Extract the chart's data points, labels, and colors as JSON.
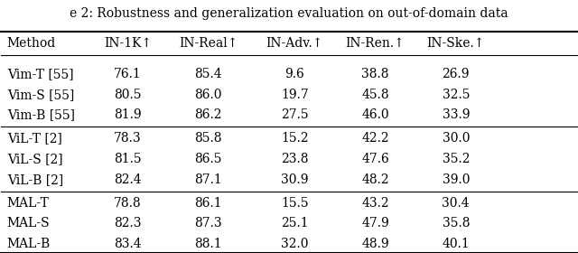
{
  "title": "e 2: Robustness and generalization evaluation on out-of-domain data",
  "columns": [
    "Method",
    "IN-1K↑",
    "IN-Real↑",
    "IN-Adv.↑",
    "IN-Ren.↑",
    "IN-Ske.↑"
  ],
  "rows": [
    [
      "Vim-T [55]",
      "76.1",
      "85.4",
      "9.6",
      "38.8",
      "26.9"
    ],
    [
      "Vim-S [55]",
      "80.5",
      "86.0",
      "19.7",
      "45.8",
      "32.5"
    ],
    [
      "Vim-B [55]",
      "81.9",
      "86.2",
      "27.5",
      "46.0",
      "33.9"
    ],
    [
      "ViL-T [2]",
      "78.3",
      "85.8",
      "15.2",
      "42.2",
      "30.0"
    ],
    [
      "ViL-S [2]",
      "81.5",
      "86.5",
      "23.8",
      "47.6",
      "35.2"
    ],
    [
      "ViL-B [2]",
      "82.4",
      "87.1",
      "30.9",
      "48.2",
      "39.0"
    ],
    [
      "MAL-T",
      "78.8",
      "86.1",
      "15.5",
      "43.2",
      "30.4"
    ],
    [
      "MAL-S",
      "82.3",
      "87.3",
      "25.1",
      "47.9",
      "35.8"
    ],
    [
      "MAL-B",
      "83.4",
      "88.1",
      "32.0",
      "48.9",
      "40.1"
    ]
  ],
  "group_separators": [
    3,
    6
  ],
  "col_aligns": [
    "left",
    "center",
    "center",
    "center",
    "center",
    "center"
  ],
  "background_color": "#ffffff",
  "text_color": "#000000",
  "font_size": 10,
  "title_font_size": 10
}
